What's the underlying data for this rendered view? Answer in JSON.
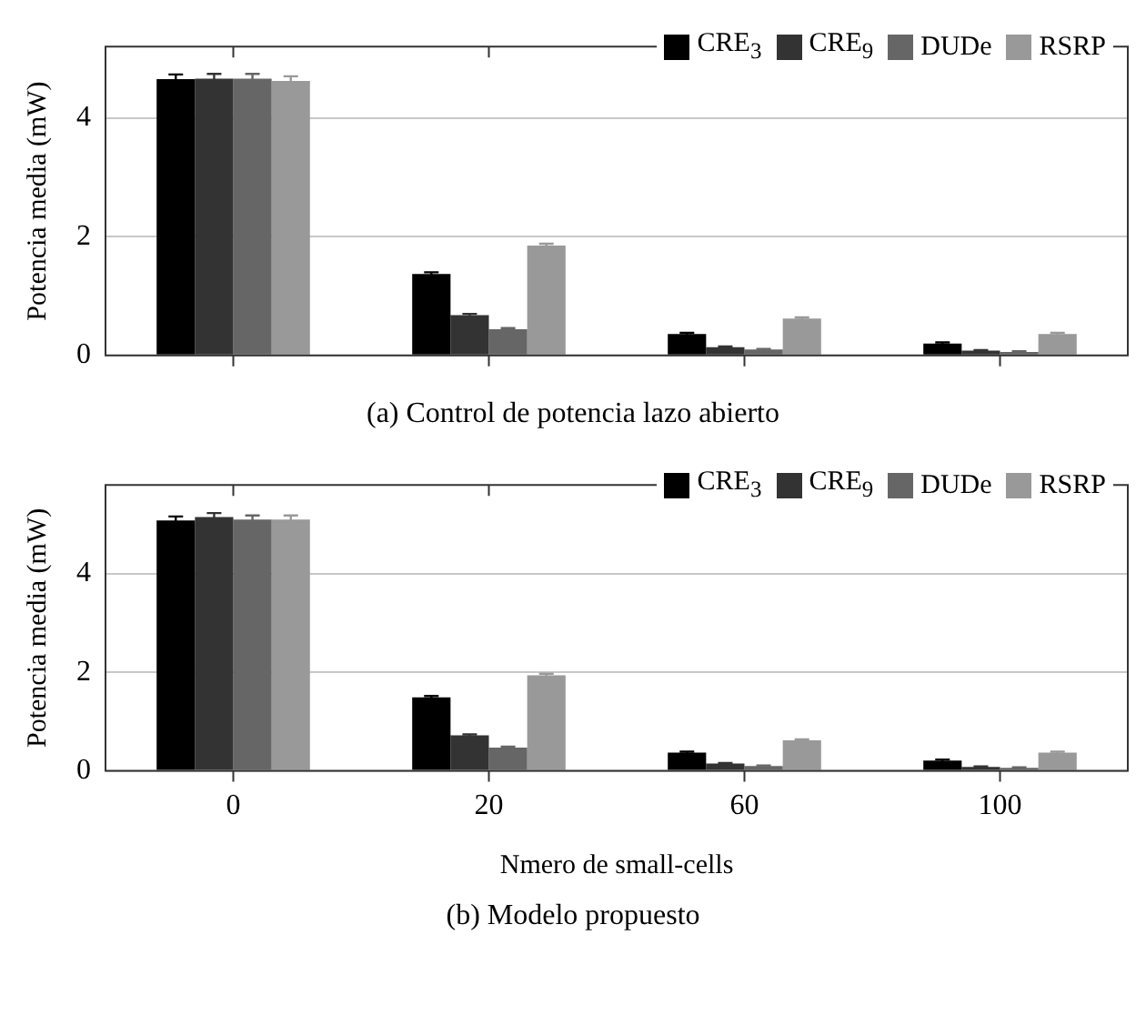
{
  "chart_data": [
    {
      "type": "bar",
      "title": "(a) Control de potencia lazo abierto",
      "ylabel": "Potencia media (mW)",
      "categories": [
        "0",
        "20",
        "60",
        "100"
      ],
      "ylim": [
        0,
        5.2
      ],
      "yticks": [
        0,
        2,
        4
      ],
      "grid": "y",
      "legend": "top right",
      "tick_labels": "y",
      "series": [
        {
          "name": "CRE$_{3}$",
          "color": "#000000",
          "values": [
            4.65,
            1.37,
            0.36,
            0.2
          ],
          "errors": [
            0.08,
            0.03,
            0.02,
            0.02
          ]
        },
        {
          "name": "CRE$_{9}$",
          "color": "#333333",
          "values": [
            4.66,
            0.68,
            0.14,
            0.08
          ],
          "errors": [
            0.08,
            0.02,
            0.01,
            0.01
          ]
        },
        {
          "name": "DUDe",
          "color": "#666666",
          "values": [
            4.66,
            0.44,
            0.1,
            0.06
          ],
          "errors": [
            0.08,
            0.02,
            0.01,
            0.01
          ]
        },
        {
          "name": "RSRP",
          "color": "#999999",
          "values": [
            4.62,
            1.85,
            0.62,
            0.36
          ],
          "errors": [
            0.08,
            0.03,
            0.02,
            0.02
          ]
        }
      ]
    },
    {
      "type": "bar",
      "title": "(b) Modelo propuesto",
      "xlabel": "Nmero de small-cells",
      "ylabel": "Potencia media (mW)",
      "categories": [
        "0",
        "20",
        "60",
        "100"
      ],
      "ylim": [
        0,
        5.8
      ],
      "yticks": [
        0,
        2,
        4
      ],
      "grid": "y",
      "legend": "top right",
      "series": [
        {
          "name": "CRE$_{3}$",
          "color": "#000000",
          "values": [
            5.08,
            1.49,
            0.37,
            0.21
          ],
          "errors": [
            0.08,
            0.03,
            0.02,
            0.02
          ]
        },
        {
          "name": "CRE$_{9}$",
          "color": "#333333",
          "values": [
            5.15,
            0.72,
            0.15,
            0.08
          ],
          "errors": [
            0.08,
            0.02,
            0.01,
            0.01
          ]
        },
        {
          "name": "DUDe",
          "color": "#666666",
          "values": [
            5.1,
            0.47,
            0.1,
            0.06
          ],
          "errors": [
            0.08,
            0.02,
            0.01,
            0.01
          ]
        },
        {
          "name": "RSRP",
          "color": "#999999",
          "values": [
            5.1,
            1.94,
            0.62,
            0.37
          ],
          "errors": [
            0.08,
            0.03,
            0.02,
            0.02
          ]
        }
      ]
    }
  ]
}
